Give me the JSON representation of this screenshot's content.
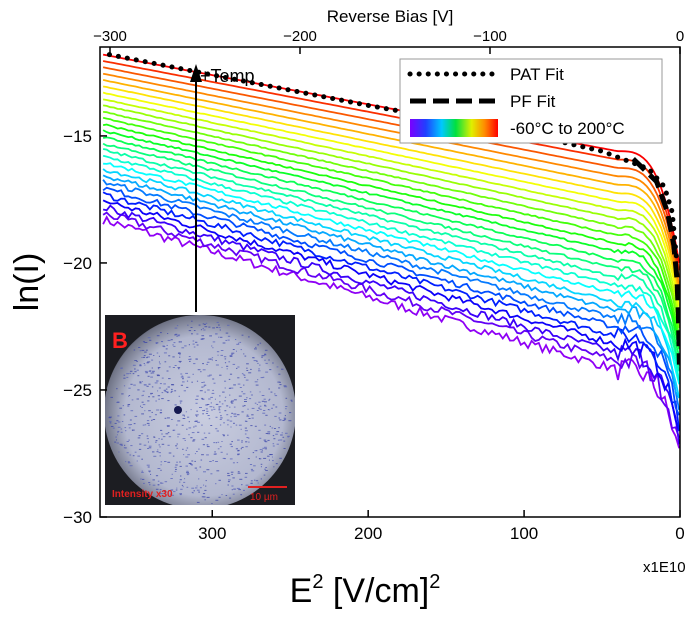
{
  "chart_data": {
    "type": "line",
    "xlabel_base": "E",
    "xlabel_exp": "2",
    "xlabel_rest": " [V/cm]",
    "xlabel_exp2": "2",
    "x_multiplier": "x1E10",
    "xlim": [
      372,
      0
    ],
    "xticks": [
      300,
      200,
      100,
      0
    ],
    "ylabel": "ln(I)",
    "ylim": [
      -30,
      -11.5
    ],
    "yticks": [
      -30,
      -25,
      -20,
      -15
    ],
    "top_axis": {
      "label": "Reverse Bias [V]",
      "ticks": [
        -300,
        -200,
        -100,
        0
      ]
    },
    "grid": false,
    "legend": {
      "placement": "top-right",
      "entries": [
        {
          "label": "PAT Fit",
          "style": "dotted",
          "color": "#000000"
        },
        {
          "label": "PF Fit",
          "style": "dashed",
          "color": "#000000"
        },
        {
          "label": "-60°C to 200°C",
          "style": "colormap"
        }
      ]
    },
    "annotation": {
      "text": "+Temp"
    },
    "temperature_range_C": [
      -60,
      200
    ],
    "series_count": 27,
    "series_low": {
      "left": -18.3,
      "flat_end": -24.2,
      "end": -27.5
    },
    "series_high": {
      "left": -11.8,
      "flat_end": -15.6,
      "end": -20.0
    },
    "pat_fit": [
      [
        366,
        -11.8
      ],
      [
        300,
        -12.6
      ],
      [
        200,
        -13.8
      ],
      [
        100,
        -14.9
      ],
      [
        50,
        -15.6
      ],
      [
        20,
        -16.3
      ],
      [
        10,
        -17.0
      ],
      [
        5,
        -18.0
      ],
      [
        2,
        -20.0
      ]
    ],
    "pf_fit": [
      [
        30,
        -15.9
      ],
      [
        15,
        -16.8
      ],
      [
        8,
        -18.0
      ],
      [
        4,
        -19.3
      ],
      [
        2,
        -20.6
      ],
      [
        1,
        -22.0
      ],
      [
        0.4,
        -24.0
      ]
    ]
  },
  "inset": {
    "letter": "B",
    "caption": "Intensity x30",
    "scale_bar": "10 µm"
  }
}
